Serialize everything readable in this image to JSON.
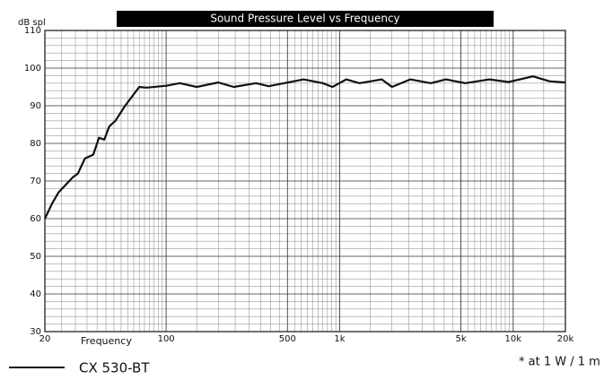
{
  "chart_data": {
    "type": "line",
    "title": "Sound Pressure Level vs Frequency",
    "y_label": "dB spl",
    "x_label": "Frequency",
    "footnote": "* at 1 W / 1 m",
    "x_scale": "log",
    "grid": true,
    "x": [
      20,
      22,
      24,
      29,
      31,
      34,
      38,
      41,
      44,
      47,
      51,
      58,
      70,
      77,
      100,
      120,
      150,
      200,
      245,
      330,
      390,
      620,
      800,
      910,
      1090,
      1300,
      1750,
      2000,
      2550,
      3350,
      4100,
      5300,
      7300,
      9400,
      13000,
      16200,
      20000
    ],
    "series": [
      {
        "name": "CX 530-BT",
        "color": "#111111",
        "values": [
          60,
          64,
          67,
          71,
          72,
          76,
          77,
          81.5,
          81,
          84.5,
          86,
          90,
          95,
          94.8,
          95.3,
          96,
          95,
          96.2,
          95,
          96,
          95.2,
          97,
          96,
          95,
          97,
          96,
          97,
          95,
          97,
          96,
          97,
          96,
          97,
          96.3,
          97.8,
          96.5,
          96.2
        ]
      }
    ],
    "xlim": [
      20,
      20000
    ],
    "xticks": [
      20,
      100,
      500,
      {
        "value": 1000,
        "label": "1k"
      },
      {
        "value": 5000,
        "label": "5k"
      },
      {
        "value": 10000,
        "label": "10k"
      },
      {
        "value": 20000,
        "label": "20k"
      }
    ],
    "ylim": [
      30,
      110
    ],
    "yticks": [
      30,
      40,
      50,
      60,
      70,
      80,
      90,
      100,
      110
    ]
  }
}
